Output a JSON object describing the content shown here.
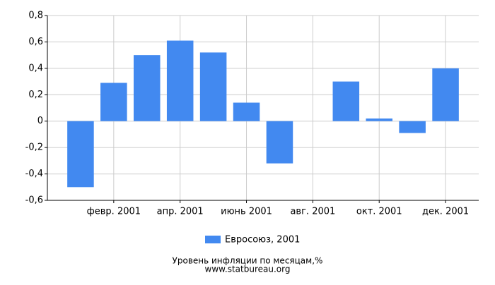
{
  "chart_data": {
    "type": "bar",
    "title": "Уровень инфляции по месяцам,%",
    "subtitle": "www.statbureau.org",
    "categories": [
      null,
      "февр. 2001",
      null,
      "апр. 2001",
      null,
      "июнь 2001",
      null,
      "авг. 2001",
      null,
      "окт. 2001",
      null,
      "дек. 2001"
    ],
    "series": [
      {
        "name": "Евросоюз, 2001",
        "color": "#4289f0",
        "values": [
          -0.5,
          0.29,
          0.5,
          0.61,
          0.52,
          0.14,
          -0.32,
          0,
          0.3,
          0.02,
          -0.09,
          0.4
        ]
      }
    ],
    "ylim": [
      -0.6,
      0.8
    ],
    "yticks": [
      {
        "value": -0.6,
        "label": "-0,6"
      },
      {
        "value": -0.4,
        "label": "-0,4"
      },
      {
        "value": -0.2,
        "label": "-0,2"
      },
      0,
      {
        "value": 0.2,
        "label": "0,2"
      },
      {
        "value": 0.4,
        "label": "0,4"
      },
      {
        "value": 0.6,
        "label": "0,6"
      },
      {
        "value": 0.8,
        "label": "0,8"
      }
    ],
    "grid": true
  }
}
